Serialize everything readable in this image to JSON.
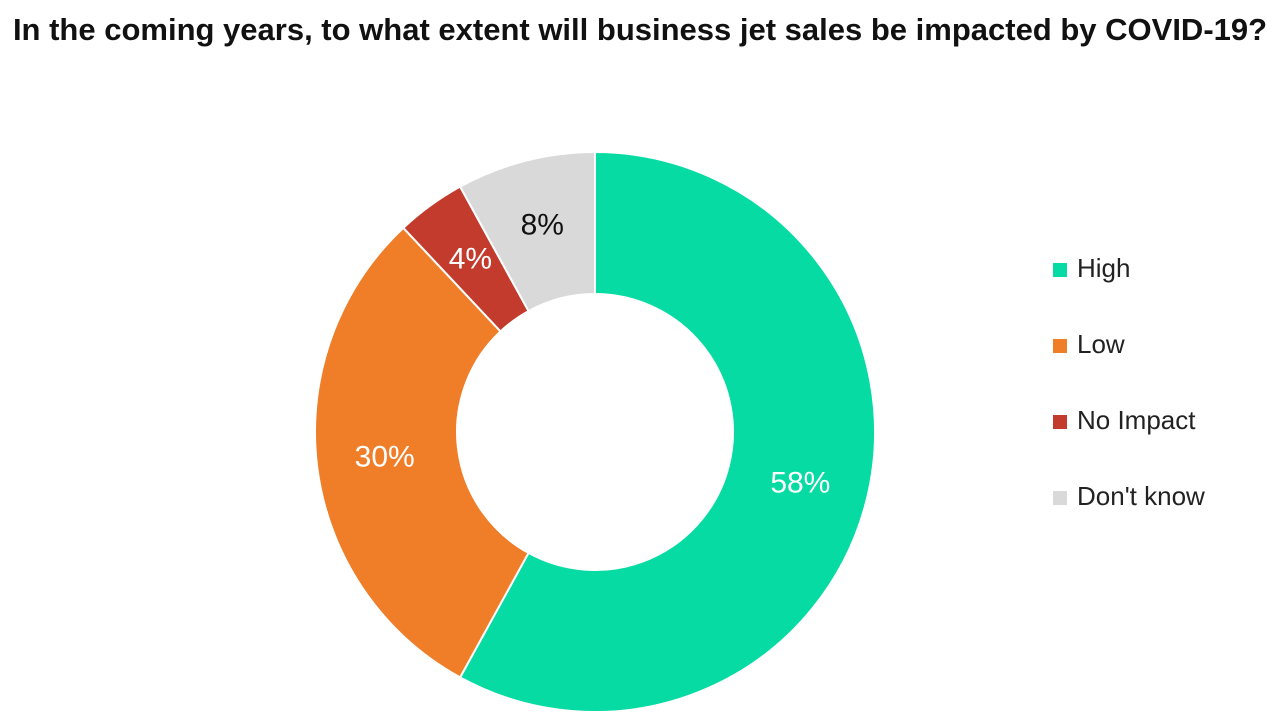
{
  "chart_data": {
    "type": "pie",
    "title": "In the coming years, to what extent will business jet sales be impacted by COVID-19?",
    "categories": [
      "High",
      "Low",
      "No Impact",
      "Don't know"
    ],
    "values": [
      58,
      30,
      4,
      8
    ],
    "value_labels": [
      "58%",
      "30%",
      "4%",
      "8%"
    ],
    "colors": [
      "#05dba2",
      "#f07d28",
      "#c23b2c",
      "#d9d9d9"
    ],
    "legend": "right"
  }
}
